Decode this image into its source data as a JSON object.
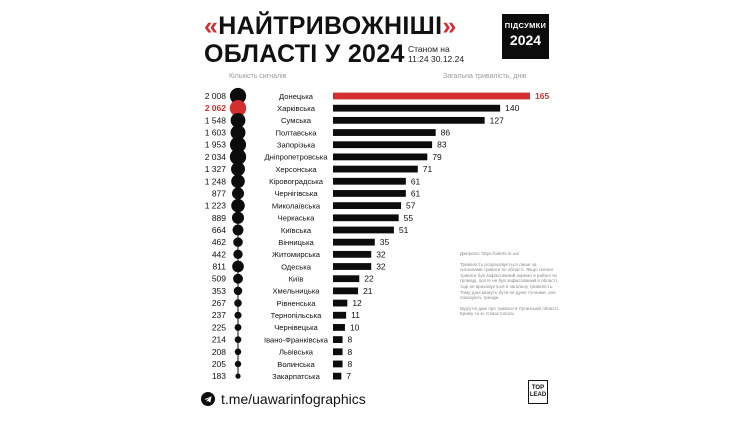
{
  "title": {
    "open_quote": "«",
    "line1": "НАЙТРИВОЖНІШІ",
    "close_quote": "»",
    "line2": "ОБЛАСТІ У 2024",
    "as_of_1": "Станом на",
    "as_of_2": "11:24 30.12.24"
  },
  "badge": {
    "label": "ПІДСУМКИ",
    "year": "2024"
  },
  "colors": {
    "highlight": "#d32f2f",
    "bar": "#0c0c0c",
    "muted": "#9a9a9a"
  },
  "chart_data": {
    "type": "bar",
    "orientation": "horizontal",
    "left_column_label": "Кількість сигналів",
    "right_column_label": "Загальна тривалість, днів",
    "highlight_alerts_index": 1,
    "highlight_duration_index": 0,
    "rows": [
      {
        "region": "Донецька",
        "alerts": "2 008",
        "alerts_value": 2008,
        "days": 165
      },
      {
        "region": "Харківська",
        "alerts": "2 062",
        "alerts_value": 2062,
        "days": 140
      },
      {
        "region": "Сумська",
        "alerts": "1 548",
        "alerts_value": 1548,
        "days": 127
      },
      {
        "region": "Полтавська",
        "alerts": "1 603",
        "alerts_value": 1603,
        "days": 86
      },
      {
        "region": "Запорізька",
        "alerts": "1 953",
        "alerts_value": 1953,
        "days": 83
      },
      {
        "region": "Дніпропетровська",
        "alerts": "2 034",
        "alerts_value": 2034,
        "days": 79
      },
      {
        "region": "Херсонська",
        "alerts": "1 327",
        "alerts_value": 1327,
        "days": 71
      },
      {
        "region": "Кіровоградська",
        "alerts": "1 248",
        "alerts_value": 1248,
        "days": 61
      },
      {
        "region": "Чернігівська",
        "alerts": "877",
        "alerts_value": 877,
        "days": 61
      },
      {
        "region": "Миколаївська",
        "alerts": "1 223",
        "alerts_value": 1223,
        "days": 57
      },
      {
        "region": "Черкаська",
        "alerts": "889",
        "alerts_value": 889,
        "days": 55
      },
      {
        "region": "Київська",
        "alerts": "664",
        "alerts_value": 664,
        "days": 51
      },
      {
        "region": "Вінницька",
        "alerts": "462",
        "alerts_value": 462,
        "days": 35
      },
      {
        "region": "Житомирська",
        "alerts": "442",
        "alerts_value": 442,
        "days": 32
      },
      {
        "region": "Одеська",
        "alerts": "811",
        "alerts_value": 811,
        "days": 32
      },
      {
        "region": "Київ",
        "alerts": "509",
        "alerts_value": 509,
        "days": 22
      },
      {
        "region": "Хмельницька",
        "alerts": "353",
        "alerts_value": 353,
        "days": 21
      },
      {
        "region": "Рівненська",
        "alerts": "267",
        "alerts_value": 267,
        "days": 12
      },
      {
        "region": "Тернопільська",
        "alerts": "237",
        "alerts_value": 237,
        "days": 11
      },
      {
        "region": "Чернівецька",
        "alerts": "225",
        "alerts_value": 225,
        "days": 10
      },
      {
        "region": "Івано-Франківська",
        "alerts": "214",
        "alerts_value": 214,
        "days": 8
      },
      {
        "region": "Львівська",
        "alerts": "208",
        "alerts_value": 208,
        "days": 8
      },
      {
        "region": "Волинська",
        "alerts": "205",
        "alerts_value": 205,
        "days": 8
      },
      {
        "region": "Закарпатська",
        "alerts": "183",
        "alerts_value": 183,
        "days": 7
      }
    ]
  },
  "notes": {
    "source": "Джерело: https://alerts.in.ua/",
    "p1": "Тривалість розраховується лише за сигналами тривоги по області. Якщо сигнал тривоги був зафіксований окремо в районі чи громаді, проте не був зафіксований в області, тоді не враховується в загальну тривалість. Тому дані можуть бути не дуже точними, але показують тренди.",
    "p2": "Відсутні дані про тривоги в Луганській області, Криму та м. Севастополь."
  },
  "footer": {
    "link": "t.me/uawarinfographics",
    "icon": "telegram-icon"
  },
  "logo": {
    "line1": "TOP",
    "line2": "LEAD"
  }
}
